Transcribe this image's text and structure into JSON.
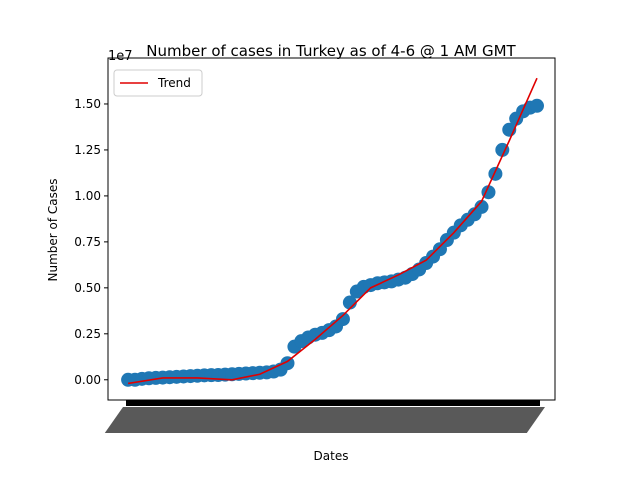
{
  "chart_data": {
    "type": "scatter",
    "title": "Number of cases in Turkey as of 4-6 @ 1 AM GMT",
    "x_label": "Dates",
    "y_label": "Number of Cases",
    "y_offset": "1e7",
    "x": [
      0,
      1,
      2,
      3,
      4,
      5,
      6,
      7,
      8,
      9,
      10,
      11,
      12,
      13,
      14,
      15,
      16,
      17,
      18,
      19,
      20,
      21,
      22,
      23,
      24,
      25,
      26,
      27,
      28,
      29,
      30,
      31,
      32,
      33,
      34,
      35,
      36,
      37,
      38,
      39,
      40,
      41,
      42,
      43,
      44,
      45,
      46,
      47,
      48,
      49,
      50,
      51,
      52,
      53,
      54,
      55,
      56,
      57,
      58,
      59
    ],
    "values": [
      0.0,
      0.0,
      0.005,
      0.008,
      0.01,
      0.012,
      0.014,
      0.016,
      0.018,
      0.02,
      0.022,
      0.024,
      0.025,
      0.026,
      0.028,
      0.03,
      0.032,
      0.034,
      0.036,
      0.038,
      0.04,
      0.045,
      0.055,
      0.09,
      0.18,
      0.21,
      0.23,
      0.245,
      0.255,
      0.27,
      0.29,
      0.33,
      0.42,
      0.48,
      0.505,
      0.515,
      0.525,
      0.53,
      0.535,
      0.545,
      0.555,
      0.575,
      0.6,
      0.635,
      0.67,
      0.71,
      0.76,
      0.8,
      0.84,
      0.87,
      0.9,
      0.94,
      1.02,
      1.12,
      1.25,
      1.36,
      1.42,
      1.46,
      1.48,
      1.49
    ],
    "color": "#1f77b4",
    "series": [
      {
        "name": "Trend",
        "color": "#e00000",
        "x": [
          0,
          5,
          10,
          15,
          19,
          23,
          27,
          31,
          35,
          39,
          43,
          47,
          51,
          55,
          59
        ],
        "values": [
          -0.02,
          0.01,
          0.01,
          0.0,
          0.03,
          0.1,
          0.22,
          0.35,
          0.5,
          0.57,
          0.65,
          0.8,
          0.97,
          1.3,
          1.64
        ]
      }
    ],
    "xlim": [
      -2.9,
      61.6
    ],
    "ylim": [
      -0.11,
      1.75
    ],
    "yticks": [
      {
        "value": 0,
        "label": "0.00"
      },
      {
        "value": 0.25,
        "label": "0.25"
      },
      {
        "value": 0.5,
        "label": "0.50"
      },
      {
        "value": 0.75,
        "label": "0.75"
      },
      {
        "value": 1,
        "label": "1.00"
      },
      {
        "value": 1.25,
        "label": "1.25"
      },
      {
        "value": 1.5,
        "label": "1.50"
      }
    ],
    "legend": "upper left",
    "grid": false
  }
}
